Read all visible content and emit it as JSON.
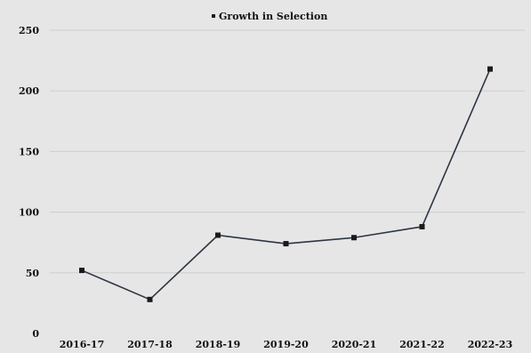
{
  "chart_data": {
    "type": "line",
    "categories": [
      "2016-17",
      "2017-18",
      "2018-19",
      "2019-20",
      "2020-21",
      "2021-22",
      "2022-23"
    ],
    "series": [
      {
        "name": "Growth in Selection",
        "values": [
          52,
          28,
          81,
          74,
          79,
          88,
          218
        ]
      }
    ],
    "ylim": [
      0,
      250
    ],
    "yticks": [
      "0",
      "50",
      "100",
      "150",
      "200",
      "250"
    ],
    "grid": "horizontal",
    "legend": "top",
    "colors": {
      "line": "#2d3545",
      "marker": "#1a1a1a",
      "grid": "#cdcdcd",
      "background": "#e6e6e6"
    }
  }
}
